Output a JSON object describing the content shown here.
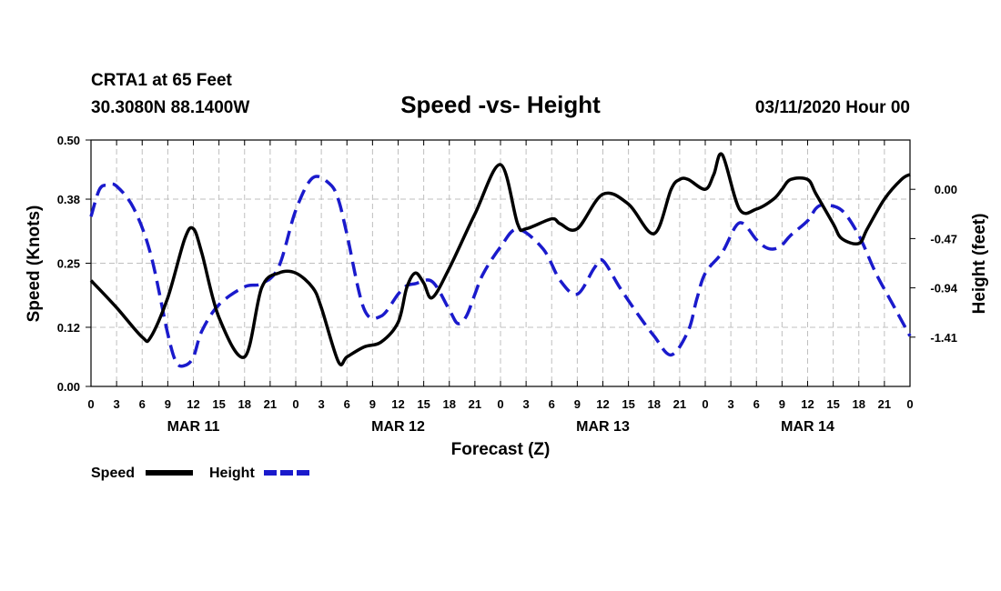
{
  "header": {
    "station": "CRTA1 at 65 Feet",
    "coords": "30.3080N 88.1400W",
    "title": "Speed -vs- Height",
    "date": "03/11/2020 Hour 00"
  },
  "legend": {
    "speed_label": "Speed",
    "height_label": "Height"
  },
  "colors": {
    "speed": "#000000",
    "height": "#1a1acc"
  },
  "chart_data": {
    "type": "line",
    "title": "Speed -vs- Height",
    "xlabel": "Forecast (Z)",
    "ylabel": "Speed (Knots)",
    "y2label": "Height (feet)",
    "xlim": [
      0,
      96
    ],
    "ylim": [
      0,
      0.5
    ],
    "y2lim": [
      -1.88,
      0.47
    ],
    "yticks": [
      "0.00",
      "0.12",
      "0.25",
      "0.38",
      "0.50"
    ],
    "y2ticks": [
      "0.00",
      "-0.47",
      "-0.94",
      "-1.41"
    ],
    "xtick_labels": [
      "0",
      "3",
      "6",
      "9",
      "12",
      "15",
      "18",
      "21",
      "0",
      "3",
      "6",
      "9",
      "12",
      "15",
      "18",
      "21",
      "0",
      "3",
      "6",
      "9",
      "12",
      "15",
      "18",
      "21",
      "0",
      "3",
      "6",
      "9",
      "12",
      "15",
      "18",
      "21",
      "0"
    ],
    "day_labels": [
      {
        "label": "MAR 11",
        "hour": 12
      },
      {
        "label": "MAR 12",
        "hour": 36
      },
      {
        "label": "MAR 13",
        "hour": 60
      },
      {
        "label": "MAR 14",
        "hour": 84
      }
    ],
    "grid": true,
    "series": [
      {
        "name": "Speed",
        "axis": "left",
        "style": "solid",
        "x": [
          0,
          3,
          6,
          7,
          9,
          11,
          12,
          13,
          15,
          18,
          20,
          22,
          24,
          26,
          27,
          29,
          30,
          32,
          34,
          36,
          37,
          38,
          39,
          40,
          42,
          45,
          48,
          50,
          51,
          54,
          55,
          57,
          60,
          63,
          66,
          68,
          69,
          70,
          72,
          73,
          74,
          76,
          78,
          80,
          81,
          82,
          84,
          85,
          87,
          88,
          90,
          91,
          93,
          95,
          96
        ],
        "values": [
          0.215,
          0.16,
          0.1,
          0.1,
          0.18,
          0.3,
          0.32,
          0.27,
          0.14,
          0.06,
          0.2,
          0.23,
          0.23,
          0.2,
          0.16,
          0.05,
          0.06,
          0.08,
          0.09,
          0.13,
          0.2,
          0.23,
          0.21,
          0.18,
          0.24,
          0.35,
          0.45,
          0.33,
          0.32,
          0.34,
          0.33,
          0.32,
          0.39,
          0.37,
          0.31,
          0.4,
          0.42,
          0.42,
          0.4,
          0.43,
          0.47,
          0.36,
          0.36,
          0.38,
          0.4,
          0.42,
          0.42,
          0.39,
          0.33,
          0.3,
          0.29,
          0.32,
          0.38,
          0.42,
          0.43
        ]
      },
      {
        "name": "Height",
        "axis": "right",
        "style": "dashed",
        "x": [
          0,
          1,
          2,
          3,
          5,
          7,
          9,
          10,
          11,
          12,
          13,
          15,
          18,
          20,
          22,
          24,
          26,
          28,
          29,
          30,
          32,
          34,
          36,
          37,
          38,
          40,
          42,
          43,
          44,
          45,
          46,
          48,
          50,
          53,
          55,
          57,
          59,
          60,
          62,
          64,
          66,
          68,
          70,
          71,
          72,
          74,
          76,
          78,
          79,
          80,
          81,
          82,
          84,
          85,
          86,
          88,
          90,
          92,
          94,
          96
        ],
        "values": [
          -0.26,
          0.0,
          0.04,
          0.03,
          -0.18,
          -0.62,
          -1.38,
          -1.65,
          -1.68,
          -1.6,
          -1.35,
          -1.1,
          -0.93,
          -0.9,
          -0.74,
          -0.2,
          0.11,
          0.05,
          -0.1,
          -0.43,
          -1.14,
          -1.21,
          -1.0,
          -0.92,
          -0.9,
          -0.88,
          -1.15,
          -1.28,
          -1.21,
          -1.0,
          -0.8,
          -0.55,
          -0.38,
          -0.57,
          -0.87,
          -1.0,
          -0.75,
          -0.68,
          -0.94,
          -1.18,
          -1.4,
          -1.58,
          -1.35,
          -1.05,
          -0.8,
          -0.6,
          -0.32,
          -0.48,
          -0.55,
          -0.57,
          -0.53,
          -0.44,
          -0.3,
          -0.18,
          -0.15,
          -0.2,
          -0.44,
          -0.8,
          -1.1,
          -1.4
        ]
      }
    ]
  }
}
